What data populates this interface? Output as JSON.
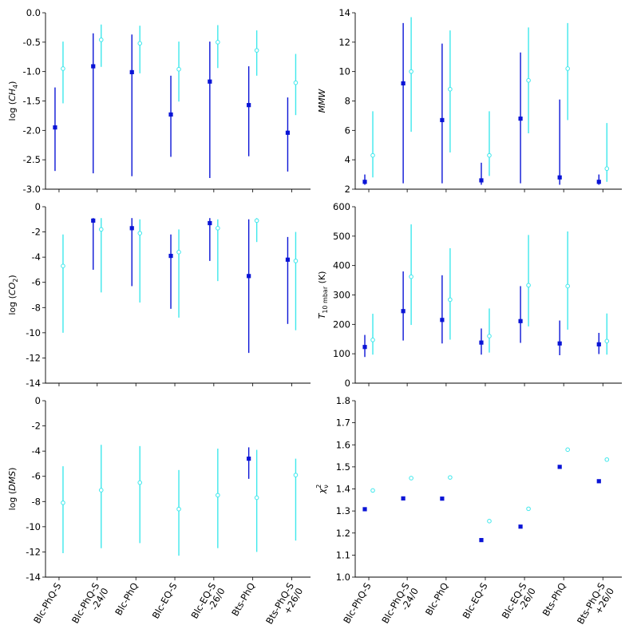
{
  "categories": [
    [
      "Blc-PhQ-S"
    ],
    [
      "Blc-PhQ-S",
      "-24/0"
    ],
    [
      "Blc-PhQ"
    ],
    [
      "Blc-EQ-S"
    ],
    [
      "Blc-EQ-S",
      "-26/0"
    ],
    [
      "Bts-PhQ"
    ],
    [
      "Bts-PhQ-S",
      "+26/0"
    ]
  ],
  "colors": {
    "series_a": "#0a14d6",
    "series_b": "#3ee8ec"
  },
  "chart_data": [
    {
      "type": "errorbar",
      "id": "ch4",
      "ylabel": "log (CH4)",
      "ylabel_main": "log",
      "ylabel_var": "CH",
      "ylabel_sub": "4",
      "ylabel_open": "(",
      "ylabel_close": ")",
      "ylim": [
        -3.0,
        0.0
      ],
      "yticks": [
        "0.0",
        "-0.5",
        "-1.0",
        "-1.5",
        "-2.0",
        "-2.5",
        "-3.0"
      ],
      "ytick_values": [
        0.0,
        -0.5,
        -1.0,
        -1.5,
        -2.0,
        -2.5,
        -3.0
      ],
      "series": [
        {
          "name": "filled",
          "values": [
            -1.95,
            -0.91,
            -1.01,
            -1.73,
            -1.17,
            -1.57,
            -2.04
          ],
          "low": [
            -2.69,
            -2.73,
            -2.78,
            -2.45,
            -2.81,
            -2.44,
            -2.7
          ],
          "high": [
            -1.27,
            -0.35,
            -0.37,
            -1.07,
            -0.49,
            -0.91,
            -1.44
          ]
        },
        {
          "name": "open",
          "values": [
            -0.95,
            -0.46,
            -0.52,
            -0.96,
            -0.5,
            -0.64,
            -1.19
          ],
          "low": [
            -1.54,
            -0.92,
            -1.03,
            -1.51,
            -0.94,
            -1.07,
            -1.74
          ],
          "high": [
            -0.49,
            -0.2,
            -0.22,
            -0.49,
            -0.21,
            -0.3,
            -0.7
          ]
        }
      ]
    },
    {
      "type": "errorbar",
      "id": "mmw",
      "ylabel": "MMW",
      "ylabel_main": "MMW",
      "ylim": [
        2,
        14
      ],
      "yticks": [
        "14",
        "12",
        "10",
        "8",
        "6",
        "4",
        "2"
      ],
      "ytick_values": [
        14,
        12,
        10,
        8,
        6,
        4,
        2
      ],
      "series": [
        {
          "name": "filled",
          "values": [
            2.5,
            9.2,
            6.7,
            2.6,
            6.8,
            2.8,
            2.5
          ],
          "low": [
            2.3,
            2.4,
            2.4,
            2.3,
            2.4,
            2.3,
            2.3
          ],
          "high": [
            3.0,
            13.3,
            11.9,
            3.8,
            11.3,
            8.1,
            3.0
          ]
        },
        {
          "name": "open",
          "values": [
            4.3,
            10.0,
            8.8,
            4.3,
            9.4,
            10.2,
            3.4
          ],
          "low": [
            2.8,
            5.9,
            4.5,
            2.9,
            5.8,
            6.7,
            2.5
          ],
          "high": [
            7.3,
            13.7,
            12.8,
            7.3,
            13.0,
            13.3,
            6.5
          ]
        }
      ]
    },
    {
      "type": "errorbar",
      "id": "co2",
      "ylabel": "log (CO2)",
      "ylabel_main": "log",
      "ylabel_var": "CO",
      "ylabel_sub": "2",
      "ylabel_open": "(",
      "ylabel_close": ")",
      "ylim": [
        -14,
        0
      ],
      "yticks": [
        "0",
        "-2",
        "-4",
        "-6",
        "-8",
        "-10",
        "-12",
        "-14"
      ],
      "ytick_values": [
        0,
        -2,
        -4,
        -6,
        -8,
        -10,
        -12,
        -14
      ],
      "series": [
        {
          "name": "filled",
          "values": [
            null,
            -1.1,
            -1.7,
            -3.9,
            -1.3,
            -5.5,
            -4.2
          ],
          "low": [
            null,
            -5.0,
            -6.3,
            -8.1,
            -4.3,
            -11.6,
            -9.3
          ],
          "high": [
            null,
            -0.9,
            -0.9,
            -2.2,
            -0.9,
            -1.0,
            -2.4
          ]
        },
        {
          "name": "open",
          "values": [
            -4.7,
            -1.8,
            -2.1,
            -3.6,
            -1.7,
            -1.1,
            -4.3
          ],
          "low": [
            -10.0,
            -6.8,
            -7.6,
            -8.8,
            -5.9,
            -2.8,
            -9.8
          ],
          "high": [
            -2.2,
            -0.9,
            -1.0,
            -1.8,
            -1.0,
            -0.9,
            -2.0
          ]
        }
      ]
    },
    {
      "type": "errorbar",
      "id": "temp",
      "ylabel": "T10mbar (K)",
      "ylabel_main": "T",
      "ylabel_sub": "10 mbar",
      "ylabel_close": " (K)",
      "ylim": [
        0,
        600
      ],
      "yticks": [
        "600",
        "500",
        "400",
        "300",
        "200",
        "100",
        "0"
      ],
      "ytick_values": [
        600,
        500,
        400,
        300,
        200,
        100,
        0
      ],
      "series": [
        {
          "name": "filled",
          "values": [
            123,
            245,
            215,
            138,
            211,
            135,
            132
          ],
          "low": [
            89,
            145,
            135,
            97,
            137,
            95,
            99
          ],
          "high": [
            164,
            380,
            367,
            186,
            330,
            213,
            171
          ]
        },
        {
          "name": "open",
          "values": [
            147,
            362,
            284,
            160,
            333,
            330,
            143
          ],
          "low": [
            97,
            198,
            148,
            104,
            193,
            182,
            97
          ],
          "high": [
            236,
            540,
            459,
            254,
            504,
            516,
            237
          ]
        }
      ]
    },
    {
      "type": "errorbar",
      "id": "dms",
      "ylabel": "log (DMS)",
      "ylabel_main": "log",
      "ylabel_var": "DMS",
      "ylabel_open": "(",
      "ylabel_close": ")",
      "ylim": [
        -14,
        0
      ],
      "yticks": [
        "0",
        "-2",
        "-4",
        "-6",
        "-8",
        "-10",
        "-12",
        "-14"
      ],
      "ytick_values": [
        0,
        -2,
        -4,
        -6,
        -8,
        -10,
        -12,
        -14
      ],
      "show_xlabels": true,
      "series": [
        {
          "name": "filled",
          "values": [
            null,
            null,
            null,
            null,
            null,
            -4.6,
            null
          ],
          "low": [
            null,
            null,
            null,
            null,
            null,
            -6.2,
            null
          ],
          "high": [
            null,
            null,
            null,
            null,
            null,
            -3.7,
            null
          ]
        },
        {
          "name": "open",
          "values": [
            -8.1,
            -7.1,
            -6.5,
            -8.6,
            -7.5,
            -7.7,
            -5.9
          ],
          "low": [
            -12.1,
            -11.7,
            -11.3,
            -12.3,
            -11.7,
            -12.0,
            -11.1
          ],
          "high": [
            -5.2,
            -3.5,
            -3.6,
            -5.5,
            -3.8,
            -3.9,
            -4.6
          ]
        }
      ]
    },
    {
      "type": "scatter",
      "id": "chi2",
      "ylabel": "χ²ν",
      "ylabel_main": "χ",
      "ylabel_sub": "ν",
      "ylabel_sup": "2",
      "ylim": [
        1.0,
        1.8
      ],
      "yticks": [
        "1.8",
        "1.7",
        "1.6",
        "1.5",
        "1.4",
        "1.3",
        "1.2",
        "1.1",
        "1.0"
      ],
      "ytick_values": [
        1.8,
        1.7,
        1.6,
        1.5,
        1.4,
        1.3,
        1.2,
        1.1,
        1.0
      ],
      "show_xlabels": true,
      "series": [
        {
          "name": "filled",
          "values": [
            1.308,
            1.357,
            1.356,
            1.168,
            1.229,
            1.5,
            1.435
          ]
        },
        {
          "name": "open",
          "values": [
            1.393,
            1.449,
            1.452,
            1.254,
            1.31,
            1.578,
            1.533
          ]
        }
      ]
    }
  ]
}
